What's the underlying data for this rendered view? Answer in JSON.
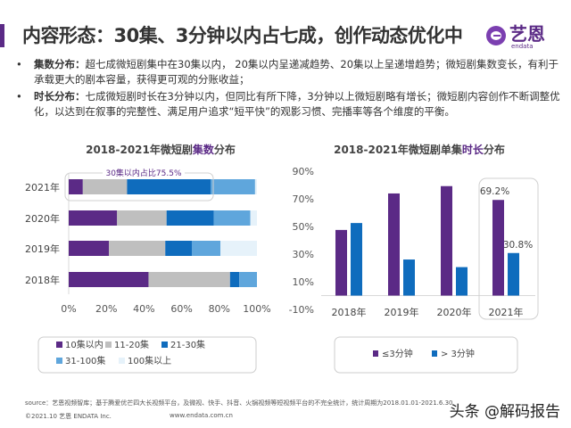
{
  "header": {
    "title": "内容形态：30集、3分钟以内占七成，创作动态优化中",
    "logo_text": "艺恩",
    "logo_sub": "endata",
    "accent_color": "#5b2a86"
  },
  "bullets": [
    {
      "label": "集数分布：",
      "text": "超七成微短剧集中在30集以内， 20集以内呈递减趋势、20集以上呈递增趋势；微短剧集数变长，有利于承载更大的剧本容量，获得更可观的分账收益；"
    },
    {
      "label": "时长分布：",
      "text": "七成微短剧时长在3分钟以内，但同比有所下降，3分钟以上微短剧略有增长；微短剧内容创作不断调整优化，以达到在叙事的完整性、满足用户追求“短平快”的观影习惯、完播率等各个维度的平衡。"
    }
  ],
  "chart_data": [
    {
      "type": "bar",
      "orientation": "horizontal",
      "stacked": true,
      "title_parts": [
        "2018-2021年微短剧",
        "集数",
        "分布"
      ],
      "categories": [
        "2021年",
        "2020年",
        "2019年",
        "2018年"
      ],
      "series": [
        {
          "name": "10集以内",
          "color": "#5b2a86",
          "values": [
            7.5,
            25.7,
            21.4,
            42.4
          ]
        },
        {
          "name": "11-20集",
          "color": "#bfbfbf",
          "values": [
            23.5,
            26.3,
            29.9,
            43.3
          ]
        },
        {
          "name": "21-30集",
          "color": "#0f6cbd",
          "values": [
            44.5,
            25.0,
            14.1,
            4.9
          ]
        },
        {
          "name": "31-100集",
          "color": "#5fa6dc",
          "values": [
            23.5,
            19.5,
            15.2,
            9.4
          ]
        },
        {
          "name": "100集以上",
          "color": "#e6f2fa",
          "values": [
            1.0,
            3.5,
            19.4,
            0
          ]
        }
      ],
      "xlim": [
        0,
        100
      ],
      "x_ticks": [
        "0%",
        "20%",
        "40%",
        "60%",
        "80%",
        "100%"
      ],
      "annotation": "30集以内占比75.5%",
      "legend": "bottom"
    },
    {
      "type": "bar",
      "title_parts": [
        "2018-2021年微短剧单集",
        "时长",
        "分布"
      ],
      "categories": [
        "2018年",
        "2019年",
        "2020年",
        "2021年"
      ],
      "series": [
        {
          "name": "≤3分钟",
          "color": "#5b2a86",
          "values": [
            47.5,
            73.9,
            79.2,
            69.2
          ]
        },
        {
          "name": "> 3分钟",
          "color": "#0f6cbd",
          "values": [
            52.5,
            26.1,
            20.6,
            30.8
          ]
        }
      ],
      "data_labels": {
        "2021年": [
          "69.2%",
          "30.8%"
        ]
      },
      "ylim": [
        -10,
        90
      ],
      "y_ticks": [
        "90%",
        "70%",
        "50%",
        "30%",
        "10%",
        "-10%"
      ],
      "legend": "bottom"
    }
  ],
  "footer": {
    "source": "source：艺恩视频智库；基于腾爱优芒四大长视频平台，及微视、快手、抖音、火锅视频等短视频平台的不完全统计，统计周期为2018.01.01-2021.6.30",
    "copyright": "©2021.10 艺恩 ENDATA Inc.",
    "website": "www.endata.com.cn",
    "watermark": "头条 @解码报告"
  }
}
